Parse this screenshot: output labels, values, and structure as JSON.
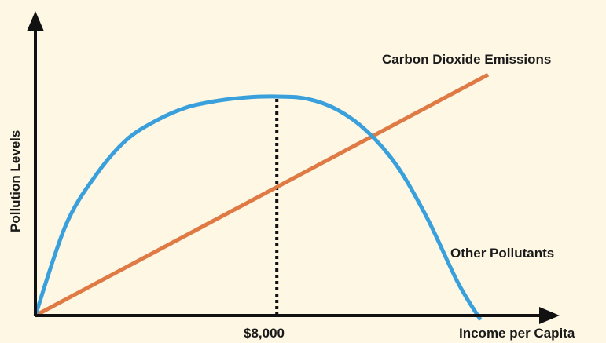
{
  "chart_data": {
    "type": "line",
    "xlabel": "Income per Capita",
    "ylabel": "Pollution Levels",
    "x_tick_labels": [
      "$8,000"
    ],
    "marker": {
      "x": 8000,
      "label": "$8,000",
      "style": "dotted"
    },
    "xlim": [
      0,
      15000
    ],
    "ylim": [
      0,
      100
    ],
    "series": [
      {
        "name": "Other Pollutants",
        "color": "#3aa0dc",
        "points": [
          [
            0,
            0
          ],
          [
            1000,
            41
          ],
          [
            2000,
            64
          ],
          [
            3000,
            80
          ],
          [
            4000,
            89
          ],
          [
            5000,
            95
          ],
          [
            6000,
            98
          ],
          [
            7000,
            99.6
          ],
          [
            8000,
            100
          ],
          [
            9000,
            99
          ],
          [
            10000,
            94
          ],
          [
            11000,
            84
          ],
          [
            12000,
            68
          ],
          [
            13000,
            44
          ],
          [
            14000,
            15
          ],
          [
            14750,
            -2
          ]
        ]
      },
      {
        "name": "Carbon Dioxide Emissions",
        "color": "#e07a45",
        "points": [
          [
            0,
            0
          ],
          [
            15000,
            110
          ]
        ]
      }
    ],
    "grid": false
  }
}
